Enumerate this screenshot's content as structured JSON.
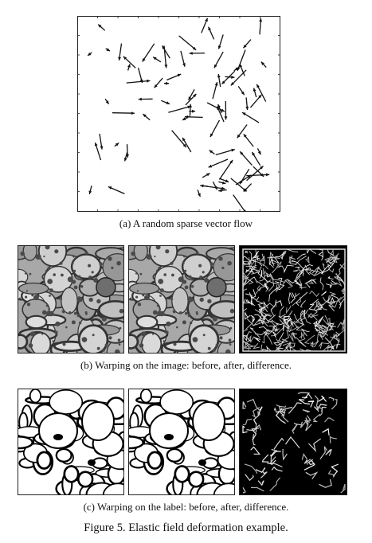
{
  "captions": {
    "a": "(a) A random sparse vector flow",
    "b": "(b) Warping on the image: before, after, difference.",
    "c": "(c) Warping on the label: before, after, difference."
  },
  "figure_caption": "Figure 5. Elastic field deformation example.",
  "colors": {
    "ink": "#111111",
    "em_light": "#c8c8c8",
    "em_dark": "#3a3a3a",
    "label_bg": "#000000",
    "label_fg": "#ffffff"
  },
  "panel_descriptions": {
    "em_before": "em-image-before",
    "em_after": "em-image-after",
    "em_diff": "em-image-difference",
    "label_before": "label-image-before",
    "label_after": "label-image-after",
    "label_diff": "label-image-difference"
  }
}
